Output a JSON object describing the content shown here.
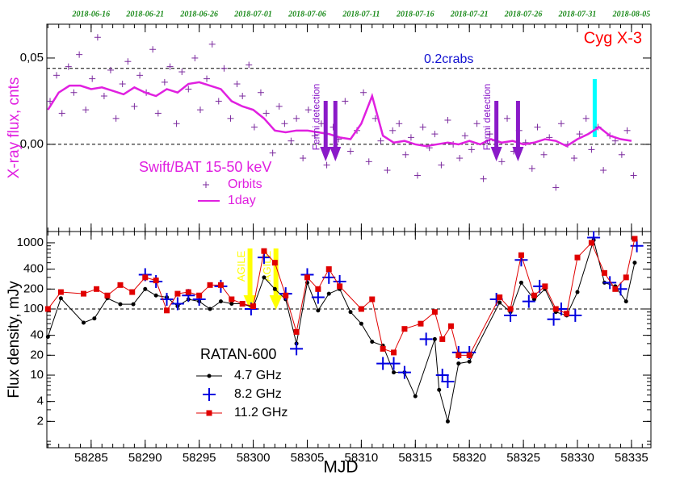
{
  "chart_data": [
    {
      "type": "scatter",
      "title": "Cyg X-3",
      "ylabel": "X-ray flux, cnts",
      "legend_title": "Swift/BAT  15-50 keV",
      "xlim": [
        58280.9,
        58336.8
      ],
      "ylim": [
        -0.0505,
        0.0696
      ],
      "yticks": [
        {
          "value": 0.05,
          "label": "0,05"
        },
        {
          "value": 0,
          "label": "0,00"
        }
      ],
      "xticks": [
        {
          "value": 58285,
          "label": "2018-06-16"
        },
        {
          "value": 58290,
          "label": "2018-06-21"
        },
        {
          "value": 58295,
          "label": "2018-06-26"
        },
        {
          "value": 58300,
          "label": "2018-07-01"
        },
        {
          "value": 58305,
          "label": "2018-07-06"
        },
        {
          "value": 58310,
          "label": "2018-07-11"
        },
        {
          "value": 58315,
          "label": "2018-07-16"
        },
        {
          "value": 58320,
          "label": "2018-07-21"
        },
        {
          "value": 58325,
          "label": "2018-07-26"
        },
        {
          "value": 58330,
          "label": "2018-07-31"
        },
        {
          "value": 58335,
          "label": "2018-08-05"
        }
      ],
      "crab_level": {
        "value": 0.044,
        "label": "0.2crabs"
      },
      "fermi": {
        "text": "Fermi detection",
        "labels_x": [
          58305.9,
          58321.7
        ],
        "arrows_x": [
          58306.7,
          58307.6,
          58322.5,
          58324.5
        ]
      },
      "cyan_x": 58331.6,
      "series": [
        {
          "name": "Orbits",
          "color": "#7b2a9e",
          "marker": "plus",
          "x": [
            58281.2,
            58281.8,
            58282.3,
            58282.9,
            58283.4,
            58283.9,
            58284.5,
            58285.1,
            58285.6,
            58286.2,
            58286.8,
            58287.3,
            58287.9,
            58288.4,
            58289.0,
            58289.5,
            58290.1,
            58290.7,
            58291.2,
            58291.8,
            58292.3,
            58292.9,
            58293.4,
            58294.0,
            58294.6,
            58295.1,
            58295.7,
            58296.2,
            58296.8,
            58297.3,
            58297.9,
            58298.5,
            58299.0,
            58299.6,
            58300.1,
            58300.7,
            58301.2,
            58301.8,
            58302.4,
            58302.9,
            58303.5,
            58304.0,
            58304.6,
            58305.1,
            58305.7,
            58306.3,
            58306.8,
            58307.4,
            58307.9,
            58308.5,
            58309.0,
            58309.6,
            58310.2,
            58310.7,
            58311.3,
            58311.8,
            58312.4,
            58312.9,
            58313.5,
            58314.1,
            58314.6,
            58315.2,
            58315.7,
            58316.3,
            58316.8,
            58317.4,
            58318.0,
            58318.5,
            58319.1,
            58319.6,
            58320.2,
            58320.7,
            58321.3,
            58321.9,
            58322.4,
            58323.0,
            58323.5,
            58324.1,
            58324.6,
            58325.2,
            58325.8,
            58326.3,
            58326.9,
            58327.4,
            58328.0,
            58328.5,
            58329.1,
            58329.7,
            58330.2,
            58330.8,
            58331.3,
            58331.9,
            58332.4,
            58333.0,
            58333.5,
            58334.1,
            58334.6,
            58335.2
          ],
          "values": [
            0.025,
            0.04,
            0.018,
            0.045,
            0.03,
            0.052,
            0.02,
            0.038,
            0.062,
            0.028,
            0.043,
            0.015,
            0.035,
            0.048,
            0.022,
            0.04,
            0.03,
            0.055,
            0.018,
            0.036,
            0.045,
            0.012,
            0.042,
            0.032,
            0.05,
            0.02,
            0.038,
            0.058,
            0.025,
            0.044,
            0.015,
            0.035,
            0.028,
            0.046,
            0.01,
            0.03,
            0.018,
            -0.005,
            0.022,
            0.012,
            0.002,
            0.015,
            -0.008,
            0.02,
            0.005,
            0.012,
            -0.012,
            0.01,
            0.003,
            0.025,
            -0.004,
            0.008,
            0.03,
            -0.01,
            0.015,
            0.002,
            -0.015,
            0.008,
            0.012,
            -0.006,
            0.004,
            -0.018,
            0.01,
            -0.002,
            0.006,
            -0.012,
            0.014,
            0.0,
            -0.008,
            0.005,
            -0.003,
            0.012,
            -0.02,
            0.006,
            0.002,
            -0.01,
            0.015,
            -0.004,
            0.008,
            0.001,
            -0.014,
            0.01,
            -0.006,
            0.004,
            -0.025,
            0.012,
            0.0,
            -0.008,
            0.006,
            0.015,
            -0.003,
            0.01,
            -0.015,
            0.005,
            0.002,
            -0.006,
            0.008,
            -0.018
          ]
        },
        {
          "name": "1day",
          "color": "#e020e0",
          "line": true,
          "x": [
            58281,
            58282,
            58283,
            58284,
            58285,
            58286,
            58287,
            58288,
            58289,
            58290,
            58291,
            58292,
            58293,
            58294,
            58295,
            58296,
            58297,
            58298,
            58299,
            58300,
            58301,
            58302,
            58303,
            58304,
            58305,
            58306,
            58307,
            58308,
            58309,
            58310,
            58311,
            58312,
            58313,
            58314,
            58315,
            58316,
            58317,
            58318,
            58319,
            58320,
            58321,
            58322,
            58323,
            58324,
            58325,
            58326,
            58327,
            58328,
            58329,
            58330,
            58331,
            58332,
            58333,
            58334,
            58335
          ],
          "values": [
            0.02,
            0.03,
            0.034,
            0.034,
            0.032,
            0.033,
            0.031,
            0.029,
            0.033,
            0.03,
            0.028,
            0.032,
            0.03,
            0.035,
            0.036,
            0.034,
            0.032,
            0.025,
            0.022,
            0.02,
            0.015,
            0.008,
            0.007,
            0.008,
            0.008,
            0.007,
            0.006,
            0.004,
            0.003,
            0.012,
            0.028,
            0.005,
            0.001,
            0.002,
            0,
            -0.001,
            0,
            0.001,
            0,
            0.002,
            0,
            0.003,
            0.001,
            0.002,
            0,
            0.001,
            0.003,
            0.002,
            -0.001,
            0.003,
            0.006,
            0.01,
            0.005,
            0.003,
            0.002
          ]
        }
      ]
    },
    {
      "type": "line",
      "xlabel": "MJD",
      "ylabel": "Flux density, mJy",
      "legend_title": "RATAN-600",
      "log": true,
      "xlim": [
        58280.9,
        58336.8
      ],
      "ylim": [
        0.8,
        1480
      ],
      "xticks": [
        58285,
        58290,
        58295,
        58300,
        58305,
        58310,
        58315,
        58320,
        58325,
        58330,
        58335
      ],
      "yticks": [
        2,
        4,
        10,
        20,
        40,
        100,
        200,
        400,
        1000
      ],
      "ref_level": 100,
      "agile": {
        "text": "AGILE",
        "x": [
          58299.7,
          58302.1
        ]
      },
      "series": [
        {
          "name": "4.7 GHz",
          "color": "#000000",
          "marker": "dot",
          "line": true,
          "x": [
            58281,
            58282.2,
            58284.3,
            58285.3,
            58286.5,
            58287.7,
            58288.9,
            58290,
            58291,
            58292,
            58293,
            58294,
            58295,
            58296,
            58297,
            58298,
            58299,
            58300,
            58301,
            58302,
            58303,
            58304,
            58305,
            58306,
            58307,
            58308,
            58309,
            58310,
            58311,
            58312,
            58313,
            58314,
            58315,
            58316.8,
            58317.2,
            58318,
            58319,
            58320,
            58322.8,
            58323.8,
            58324.8,
            58326,
            58327,
            58328,
            58329,
            58330,
            58331.5,
            58332.5,
            58333.5,
            58334.5,
            58335.3
          ],
          "values": [
            38,
            145,
            62,
            72,
            145,
            118,
            118,
            200,
            160,
            150,
            110,
            140,
            130,
            100,
            130,
            120,
            120,
            105,
            300,
            200,
            140,
            30,
            250,
            95,
            170,
            200,
            90,
            60,
            32,
            28,
            11,
            11,
            4.8,
            35,
            6,
            2,
            15,
            16,
            125,
            90,
            250,
            140,
            200,
            90,
            80,
            180,
            1100,
            250,
            220,
            130,
            500
          ]
        },
        {
          "name": "8.2 GHz",
          "color": "#0000e0",
          "marker": "plus",
          "x": [
            58290,
            58291,
            58292,
            58293,
            58294,
            58295,
            58297,
            58299.8,
            58301,
            58303,
            58304,
            58305,
            58306,
            58307,
            58308,
            58312,
            58313,
            58314,
            58316,
            58317.5,
            58318,
            58319,
            58320,
            58322.5,
            58323.8,
            58324.8,
            58325.5,
            58326.5,
            58327.8,
            58328.5,
            58329.8,
            58331.5,
            58333,
            58334,
            58335.5
          ],
          "values": [
            330,
            260,
            140,
            120,
            160,
            140,
            220,
            100,
            600,
            170,
            25,
            330,
            150,
            300,
            260,
            15,
            15,
            11,
            35,
            10,
            8,
            22,
            22,
            140,
            80,
            550,
            130,
            220,
            70,
            100,
            80,
            1200,
            250,
            200,
            900
          ]
        },
        {
          "name": "11.2 GHz",
          "color": "#e00000",
          "marker": "square",
          "line": true,
          "x": [
            58281,
            58282.2,
            58284.3,
            58285.5,
            58286.5,
            58287.7,
            58288.8,
            58290,
            58291,
            58292,
            58293,
            58294,
            58295,
            58296,
            58297,
            58298,
            58299,
            58300,
            58301,
            58302,
            58303,
            58304,
            58305,
            58306,
            58307,
            58308,
            58310,
            58311,
            58312,
            58313,
            58314,
            58315.5,
            58316.8,
            58317.5,
            58318.3,
            58319,
            58320,
            58322.8,
            58323.8,
            58324.8,
            58326,
            58327,
            58328,
            58329,
            58330,
            58331.3,
            58332.5,
            58333.5,
            58334.5,
            58335.3
          ],
          "values": [
            100,
            180,
            170,
            200,
            160,
            230,
            180,
            300,
            270,
            95,
            170,
            180,
            160,
            230,
            230,
            140,
            120,
            110,
            750,
            500,
            160,
            45,
            300,
            200,
            400,
            220,
            100,
            140,
            25,
            22,
            50,
            60,
            90,
            35,
            55,
            20,
            20,
            150,
            100,
            650,
            160,
            220,
            100,
            85,
            600,
            1000,
            350,
            200,
            300,
            1150
          ]
        }
      ]
    }
  ]
}
